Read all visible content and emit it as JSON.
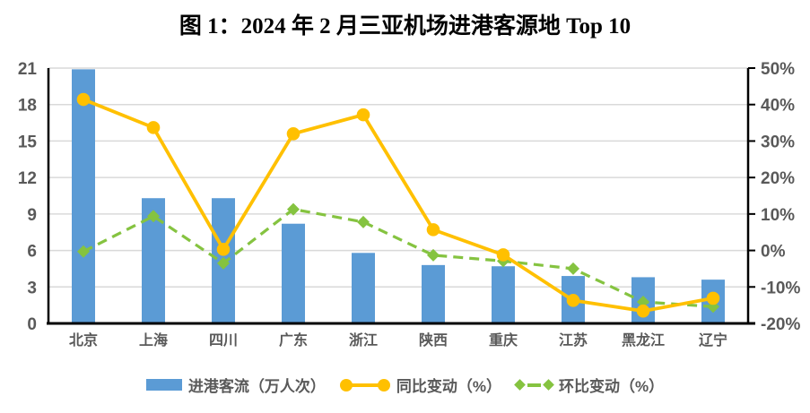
{
  "colors": {
    "bar": "#5B9BD5",
    "yoy": "#FFC000",
    "mom": "#85C340",
    "grid": "#D9D9D9",
    "axis": "#000000",
    "tick_label": "#595959"
  },
  "chart_data": {
    "type": "bar",
    "title": "图 1：2024 年 2 月三亚机场进港客源地 Top 10",
    "categories": [
      "北京",
      "上海",
      "四川",
      "广东",
      "浙江",
      "陕西",
      "重庆",
      "江苏",
      "黑龙江",
      "辽宁"
    ],
    "series": [
      {
        "name": "进港客流（万人次）",
        "type": "bar",
        "axis": "left",
        "marker": "square",
        "values": [
          20.9,
          10.3,
          10.3,
          8.2,
          5.8,
          4.8,
          4.7,
          3.9,
          3.8,
          3.6
        ]
      },
      {
        "name": "同比变动（%）",
        "type": "line",
        "axis": "right",
        "marker": "circle",
        "values": [
          41.4,
          33.7,
          0.3,
          32.0,
          37.2,
          5.7,
          -1.2,
          -13.7,
          -16.6,
          -13.1
        ]
      },
      {
        "name": "环比变动（%）",
        "type": "line",
        "dashed": true,
        "axis": "right",
        "marker": "diamond",
        "values": [
          -0.3,
          9.4,
          -3.5,
          11.3,
          7.8,
          -1.3,
          -2.9,
          -5.0,
          -14.1,
          -15.4
        ]
      }
    ],
    "left_axis": {
      "min": 0,
      "max": 21,
      "step": 3,
      "tick_labels": [
        "0",
        "3",
        "6",
        "9",
        "12",
        "15",
        "18",
        "21"
      ]
    },
    "right_axis": {
      "min": -20,
      "max": 50,
      "step": 10,
      "tick_labels": [
        "-20%",
        "-10%",
        "0%",
        "10%",
        "20%",
        "30%",
        "40%",
        "50%"
      ]
    },
    "grid": true,
    "legend_position": "bottom"
  }
}
